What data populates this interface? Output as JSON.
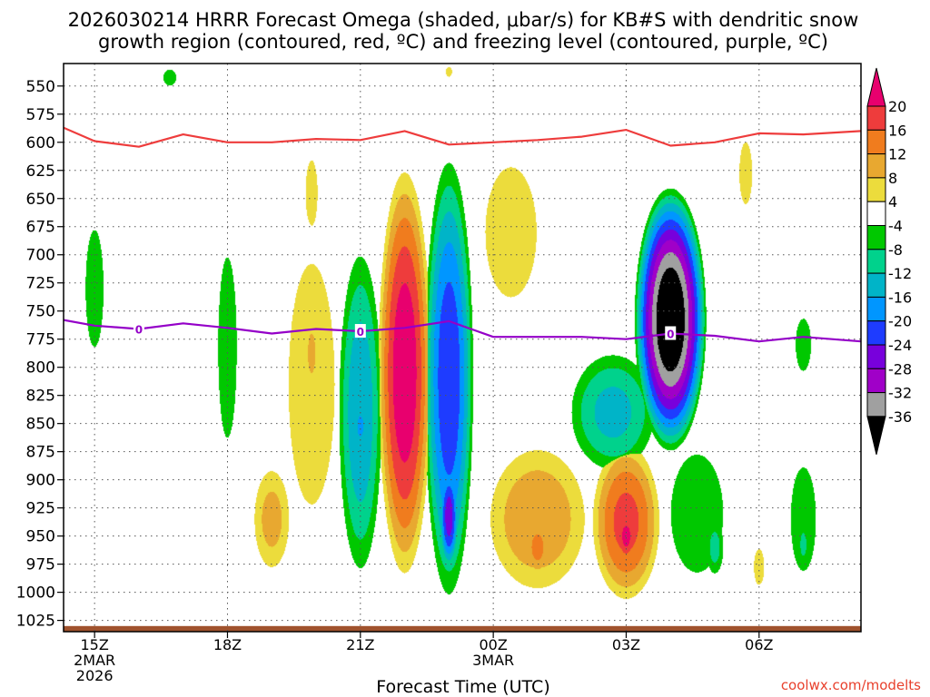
{
  "chart_data": {
    "type": "time-height-contour",
    "title_line1": "2026030214 HRRR Forecast Omega (shaded, μbar/s) for KB#S with dendritic snow",
    "title_line2": "growth region (contoured, red, ºC) and freezing level (contoured, purple, ºC)",
    "xlabel": "Forecast Time (UTC)",
    "ylabel": "",
    "credit": "coolwx.com/modelts",
    "x_range_hours": [
      14.3,
      32.3
    ],
    "y_range_mb": [
      530,
      1035
    ],
    "y_ticks": [
      550,
      575,
      600,
      625,
      650,
      675,
      700,
      725,
      750,
      775,
      800,
      825,
      850,
      875,
      900,
      925,
      950,
      975,
      1000,
      1025
    ],
    "x_ticks": [
      {
        "hour": 15,
        "lines": [
          "15Z",
          "2MAR",
          "2026"
        ]
      },
      {
        "hour": 18,
        "lines": [
          "18Z"
        ]
      },
      {
        "hour": 21,
        "lines": [
          "21Z"
        ]
      },
      {
        "hour": 24,
        "lines": [
          "00Z",
          "3MAR"
        ]
      },
      {
        "hour": 27,
        "lines": [
          "03Z"
        ]
      },
      {
        "hour": 30,
        "lines": [
          "06Z"
        ]
      }
    ],
    "colorbar": {
      "labels": [
        "20",
        "16",
        "12",
        "8",
        "4",
        "-4",
        "-8",
        "-12",
        "-16",
        "-20",
        "-24",
        "-28",
        "-32",
        "-36"
      ],
      "bins": [
        {
          "min": 20,
          "max": null,
          "color": "#e8006e"
        },
        {
          "min": 16,
          "max": 20,
          "color": "#ee3c3c"
        },
        {
          "min": 12,
          "max": 16,
          "color": "#f07c1e"
        },
        {
          "min": 8,
          "max": 12,
          "color": "#e8a830"
        },
        {
          "min": 4,
          "max": 8,
          "color": "#ecdc3c"
        },
        {
          "min": -4,
          "max": 4,
          "color": "#ffffff"
        },
        {
          "min": -8,
          "max": -4,
          "color": "#00c800"
        },
        {
          "min": -12,
          "max": -8,
          "color": "#00d28c"
        },
        {
          "min": -16,
          "max": -12,
          "color": "#00b4c8"
        },
        {
          "min": -20,
          "max": -16,
          "color": "#0096ff"
        },
        {
          "min": -24,
          "max": -20,
          "color": "#1e3cff"
        },
        {
          "min": -28,
          "max": -24,
          "color": "#7800dc"
        },
        {
          "min": -32,
          "max": -28,
          "color": "#a000c8"
        },
        {
          "min": -36,
          "max": -32,
          "color": "#a0a0a0"
        },
        {
          "min": null,
          "max": -36,
          "color": "#000000"
        }
      ]
    },
    "omega_features": [
      {
        "hour": 15.0,
        "p_top": 640,
        "p_bot": 820,
        "hw": 0.35,
        "peak": -6
      },
      {
        "hour": 18.0,
        "p_top": 660,
        "p_bot": 905,
        "hw": 0.32,
        "peak": -7
      },
      {
        "hour": 19.9,
        "p_top": 630,
        "p_bot": 1000,
        "hw": 0.9,
        "peak": 6
      },
      {
        "hour": 19.9,
        "p_top": 735,
        "p_bot": 840,
        "hw": 0.25,
        "peak": 9
      },
      {
        "hour": 19.9,
        "p_top": 580,
        "p_bot": 710,
        "hw": 0.3,
        "peak": 5
      },
      {
        "hour": 19.0,
        "p_top": 880,
        "p_bot": 990,
        "hw": 0.5,
        "peak": 10
      },
      {
        "hour": 21.0,
        "p_top": 680,
        "p_bot": 1000,
        "hw": 0.55,
        "peak": -16
      },
      {
        "hour": 21.0,
        "p_top": 825,
        "p_bot": 880,
        "hw": 0.2,
        "peak": -18
      },
      {
        "hour": 22.0,
        "p_top": 610,
        "p_bot": 1000,
        "hw": 0.65,
        "peak": 24
      },
      {
        "hour": 23.0,
        "p_top": 600,
        "p_bot": 1020,
        "hw": 0.6,
        "peak": -24
      },
      {
        "hour": 23.0,
        "p_top": 880,
        "p_bot": 985,
        "hw": 0.25,
        "peak": -27
      },
      {
        "hour": 24.4,
        "p_top": 580,
        "p_bot": 780,
        "hw": 1.0,
        "peak": 6
      },
      {
        "hour": 25.0,
        "p_top": 860,
        "p_bot": 1010,
        "hw": 1.3,
        "peak": 12
      },
      {
        "hour": 25.0,
        "p_top": 930,
        "p_bot": 990,
        "hw": 0.35,
        "peak": 14
      },
      {
        "hour": 26.7,
        "p_top": 780,
        "p_bot": 900,
        "hw": 1.1,
        "peak": -14
      },
      {
        "hour": 27.0,
        "p_top": 860,
        "p_bot": 1015,
        "hw": 0.85,
        "peak": 18
      },
      {
        "hour": 27.0,
        "p_top": 920,
        "p_bot": 980,
        "hw": 0.3,
        "peak": 22
      },
      {
        "hour": 28.0,
        "p_top": 635,
        "p_bot": 880,
        "hw": 0.85,
        "peak": -42
      },
      {
        "hour": 28.6,
        "p_top": 850,
        "p_bot": 1010,
        "hw": 0.9,
        "peak": -7
      },
      {
        "hour": 29.0,
        "p_top": 930,
        "p_bot": 990,
        "hw": 0.25,
        "peak": -10
      },
      {
        "hour": 29.7,
        "p_top": 580,
        "p_bot": 675,
        "hw": 0.25,
        "peak": 6
      },
      {
        "hour": 30.0,
        "p_top": 950,
        "p_bot": 1005,
        "hw": 0.2,
        "peak": 6
      },
      {
        "hour": 31.0,
        "p_top": 740,
        "p_bot": 820,
        "hw": 0.3,
        "peak": -6
      },
      {
        "hour": 31.0,
        "p_top": 870,
        "p_bot": 1000,
        "hw": 0.4,
        "peak": -8
      },
      {
        "hour": 31.0,
        "p_top": 935,
        "p_bot": 980,
        "hw": 0.15,
        "peak": -10
      },
      {
        "hour": 16.7,
        "p_top": 530,
        "p_bot": 555,
        "hw": 0.25,
        "peak": -6
      },
      {
        "hour": 23.0,
        "p_top": 530,
        "p_bot": 545,
        "hw": 0.12,
        "peak": 6
      }
    ],
    "dendritic_line": {
      "color": "#ee3c3c",
      "hours": [
        14.3,
        15.0,
        16.0,
        17.0,
        18.0,
        19.0,
        20.0,
        21.0,
        22.0,
        23.0,
        24.0,
        25.0,
        26.0,
        27.0,
        28.0,
        29.0,
        30.0,
        31.0,
        32.3
      ],
      "pressure_mb": [
        587,
        599,
        604,
        593,
        600,
        600,
        597,
        598,
        590,
        602,
        600,
        598,
        595,
        589,
        603,
        600,
        592,
        593,
        590
      ]
    },
    "freezing_line": {
      "color": "#9400c8",
      "label": "0",
      "label_hours": [
        16.0,
        21.0,
        28.0
      ],
      "hours": [
        14.3,
        15.0,
        16.0,
        17.0,
        18.0,
        19.0,
        20.0,
        21.0,
        22.0,
        23.0,
        24.0,
        25.0,
        26.0,
        27.0,
        28.0,
        29.0,
        30.0,
        31.0,
        32.3
      ],
      "pressure_mb": [
        758,
        763,
        766,
        761,
        765,
        770,
        766,
        768,
        765,
        759,
        773,
        773,
        773,
        775,
        770,
        772,
        777,
        773,
        777
      ]
    },
    "ground": {
      "color": "#a0522d",
      "top_mb": 1030
    }
  }
}
